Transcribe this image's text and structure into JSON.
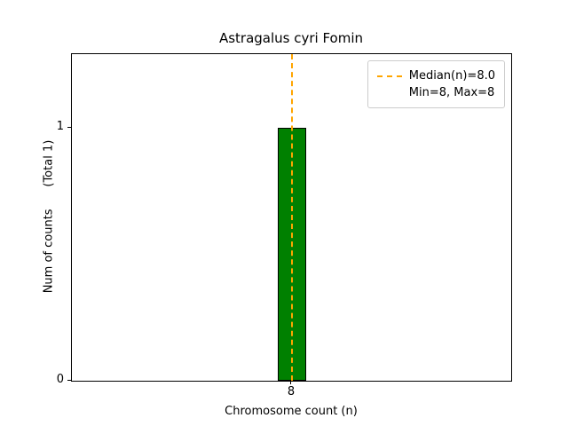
{
  "chart_data": {
    "type": "bar",
    "title": "Astragalus cyri Fomin",
    "xlabel": "Chromosome count (n)",
    "ylabel": "Num of counts      (Total 1)",
    "categories": [
      "8"
    ],
    "values": [
      1
    ],
    "x": [
      8
    ],
    "ylim": [
      0,
      1.29
    ],
    "yticks": [
      0,
      1
    ],
    "xticks": [
      "8"
    ],
    "grid": false,
    "bar_color": "#008000",
    "bar_edge_color": "#000000",
    "median_line": {
      "value": 8.0,
      "color": "#FFA500",
      "style": "dashed"
    },
    "legend": {
      "position": "upper right",
      "entries": [
        "Median(n)=8.0",
        "Min=8, Max=8"
      ]
    },
    "total_annotation": "(Total 1)"
  }
}
